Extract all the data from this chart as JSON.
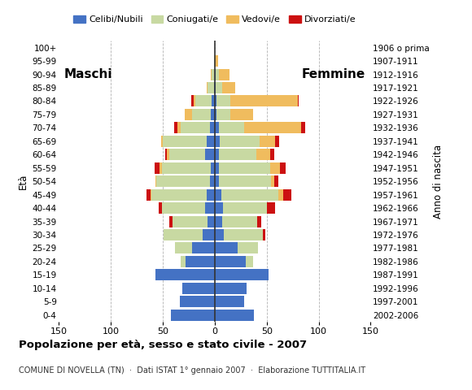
{
  "age_groups": [
    "0-4",
    "5-9",
    "10-14",
    "15-19",
    "20-24",
    "25-29",
    "30-34",
    "35-39",
    "40-44",
    "45-49",
    "50-54",
    "55-59",
    "60-64",
    "65-69",
    "70-74",
    "75-79",
    "80-84",
    "85-89",
    "90-94",
    "95-99",
    "100+"
  ],
  "birth_years": [
    "2002-2006",
    "1997-2001",
    "1992-1996",
    "1987-1991",
    "1982-1986",
    "1977-1981",
    "1972-1976",
    "1967-1971",
    "1962-1966",
    "1957-1961",
    "1952-1956",
    "1947-1951",
    "1942-1946",
    "1937-1941",
    "1932-1936",
    "1927-1931",
    "1922-1926",
    "1917-1921",
    "1912-1916",
    "1907-1911",
    "1906 o prima"
  ],
  "male": {
    "celibi": [
      42,
      34,
      31,
      57,
      28,
      22,
      12,
      7,
      9,
      8,
      5,
      4,
      9,
      8,
      5,
      4,
      3,
      1,
      0,
      0,
      0
    ],
    "coniugati": [
      0,
      0,
      0,
      0,
      5,
      16,
      37,
      34,
      42,
      53,
      51,
      47,
      35,
      42,
      28,
      18,
      16,
      6,
      3,
      1,
      0
    ],
    "vedovi": [
      0,
      0,
      0,
      0,
      0,
      0,
      0,
      0,
      0,
      1,
      1,
      2,
      2,
      2,
      3,
      7,
      1,
      1,
      1,
      0,
      0
    ],
    "divorziati": [
      0,
      0,
      0,
      0,
      0,
      0,
      0,
      3,
      3,
      4,
      0,
      5,
      2,
      0,
      3,
      0,
      3,
      0,
      0,
      0,
      0
    ]
  },
  "female": {
    "nubili": [
      38,
      28,
      31,
      52,
      30,
      22,
      9,
      7,
      8,
      6,
      4,
      4,
      4,
      5,
      4,
      2,
      2,
      1,
      1,
      0,
      0
    ],
    "coniugate": [
      0,
      0,
      0,
      0,
      7,
      20,
      37,
      34,
      42,
      55,
      50,
      49,
      36,
      38,
      24,
      13,
      13,
      6,
      3,
      0,
      0
    ],
    "vedove": [
      0,
      0,
      0,
      0,
      0,
      0,
      0,
      0,
      0,
      5,
      3,
      10,
      13,
      15,
      55,
      22,
      65,
      13,
      10,
      3,
      0
    ],
    "divorziate": [
      0,
      0,
      0,
      0,
      0,
      0,
      3,
      4,
      8,
      8,
      4,
      5,
      4,
      4,
      4,
      0,
      1,
      0,
      0,
      0,
      0
    ]
  },
  "colors": {
    "celibi": "#4472c4",
    "coniugati": "#c8d9a2",
    "vedovi": "#f0bc5e",
    "divorziati": "#cc1111"
  },
  "xlim": 150,
  "title": "Popolazione per età, sesso e stato civile - 2007",
  "subtitle": "COMUNE DI NOVELLA (TN)  ·  Dati ISTAT 1° gennaio 2007  ·  Elaborazione TUTTITALIA.IT",
  "legend_labels": [
    "Celibi/Nubili",
    "Coniugati/e",
    "Vedovi/e",
    "Divorziati/e"
  ],
  "ylabel_left": "Età",
  "ylabel_right": "Anno di nascita",
  "label_maschi": "Maschi",
  "label_femmine": "Femmine"
}
